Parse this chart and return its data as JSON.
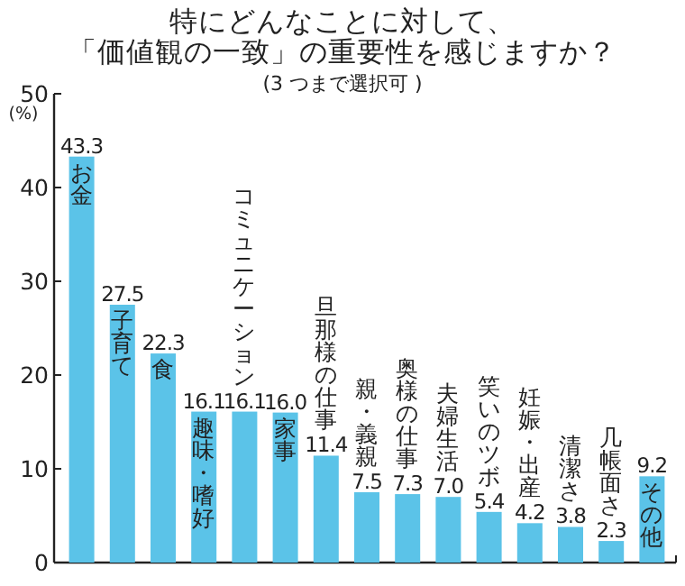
{
  "chart_data": {
    "type": "bar",
    "title": "特にどんなことに対して、「価値観の一致」の重要性を感じますか？",
    "subtitle": "(3 つまで選択可 )",
    "ylabel": "(%)",
    "categories": [
      "お金",
      "子育て",
      "食",
      "趣味・嗜好",
      "コミュニケーション",
      "家事",
      "旦那様の仕事",
      "親・義親",
      "奥様の仕事",
      "夫婦生活",
      "笑いのツボ",
      "妊娠・出産",
      "清潔さ",
      "几帳面さ",
      "その他"
    ],
    "values": [
      43.3,
      27.5,
      22.3,
      16.1,
      16.1,
      16.0,
      11.4,
      7.5,
      7.3,
      7.0,
      5.4,
      4.2,
      3.8,
      2.3,
      9.2
    ],
    "value_labels": [
      "43.3",
      "27.5",
      "22.3",
      "16.1",
      "16.1",
      "16.0",
      "11.4",
      "7.5",
      "7.3",
      "7.0",
      "5.4",
      "4.2",
      "3.8",
      "2.3",
      "9.2"
    ],
    "color": "#5bc3e8",
    "ylim": [
      0,
      50
    ],
    "yticks": [
      0,
      10,
      20,
      30,
      40,
      50
    ]
  }
}
